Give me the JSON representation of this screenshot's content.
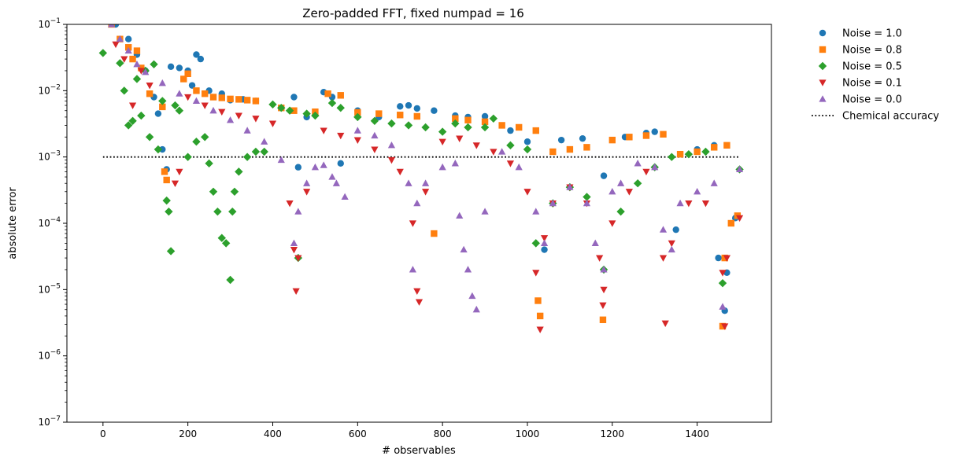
{
  "chart_data": {
    "type": "scatter",
    "title": "Zero-padded FFT, fixed numpad = 16",
    "xlabel": "# observables",
    "ylabel": "absolute error",
    "xlim": [
      -85,
      1575
    ],
    "ylim": [
      1e-07,
      0.1
    ],
    "yscale": "log",
    "xticks": [
      0,
      200,
      400,
      600,
      800,
      1000,
      1200,
      1400
    ],
    "yticks": [
      {
        "value": 1e-07,
        "base": "10",
        "exp": "−7"
      },
      {
        "value": 1e-06,
        "base": "10",
        "exp": "−6"
      },
      {
        "value": 1e-05,
        "base": "10",
        "exp": "−5"
      },
      {
        "value": 0.0001,
        "base": "10",
        "exp": "−4"
      },
      {
        "value": 0.001,
        "base": "10",
        "exp": "−3"
      },
      {
        "value": 0.01,
        "base": "10",
        "exp": "−2"
      },
      {
        "value": 0.1,
        "base": "10",
        "exp": "−1"
      }
    ],
    "grid": false,
    "legend_position": "outside-right",
    "reference_line": {
      "name": "Chemical accuracy",
      "y": 0.001,
      "x": [
        0,
        1500
      ],
      "style": "dotted",
      "color": "#000000"
    },
    "series": [
      {
        "name": "Noise = 1.0",
        "marker": "circle",
        "color": "#1f77b4",
        "x": [
          30,
          60,
          80,
          100,
          120,
          130,
          140,
          150,
          160,
          180,
          200,
          210,
          220,
          230,
          250,
          280,
          300,
          330,
          360,
          420,
          450,
          460,
          480,
          520,
          540,
          560,
          600,
          650,
          700,
          720,
          740,
          780,
          830,
          860,
          900,
          960,
          1000,
          1040,
          1080,
          1130,
          1180,
          1230,
          1280,
          1300,
          1350,
          1400,
          1440,
          1450,
          1465,
          1470,
          1490
        ],
        "y": [
          0.1,
          0.06,
          0.035,
          0.02,
          0.008,
          0.0045,
          0.0013,
          0.00065,
          0.023,
          0.022,
          0.02,
          0.012,
          0.035,
          0.03,
          0.01,
          0.009,
          0.0072,
          0.0074,
          0.007,
          0.0055,
          0.008,
          0.0007,
          0.004,
          0.0095,
          0.008,
          0.0008,
          0.005,
          0.004,
          0.0058,
          0.006,
          0.0054,
          0.005,
          0.0042,
          0.004,
          0.0041,
          0.0025,
          0.0017,
          4e-05,
          0.0018,
          0.0019,
          0.00052,
          0.002,
          0.0023,
          0.0024,
          8e-05,
          0.0013,
          0.0015,
          3e-05,
          4.8e-06,
          1.8e-05,
          0.00012
        ]
      },
      {
        "name": "Noise = 0.8",
        "marker": "square",
        "color": "#ff7f0e",
        "x": [
          20,
          40,
          60,
          70,
          80,
          90,
          110,
          140,
          145,
          150,
          190,
          200,
          220,
          240,
          260,
          280,
          300,
          320,
          340,
          360,
          420,
          450,
          500,
          530,
          560,
          600,
          650,
          700,
          740,
          780,
          830,
          860,
          900,
          940,
          980,
          1020,
          1025,
          1030,
          1060,
          1100,
          1140,
          1178,
          1200,
          1240,
          1280,
          1320,
          1360,
          1400,
          1440,
          1460,
          1465,
          1470,
          1480,
          1495
        ],
        "y": [
          0.1,
          0.06,
          0.045,
          0.03,
          0.04,
          0.022,
          0.009,
          0.0057,
          0.0006,
          0.00045,
          0.015,
          0.018,
          0.01,
          0.009,
          0.008,
          0.0078,
          0.0075,
          0.0074,
          0.0072,
          0.007,
          0.0055,
          0.005,
          0.0048,
          0.009,
          0.0085,
          0.0047,
          0.0045,
          0.0043,
          0.0041,
          7e-05,
          0.0038,
          0.0036,
          0.0034,
          0.003,
          0.0028,
          0.0025,
          6.8e-06,
          4e-06,
          0.0012,
          0.0013,
          0.0014,
          3.5e-06,
          0.0018,
          0.002,
          0.0021,
          0.0022,
          0.0011,
          0.0012,
          0.0014,
          2.8e-06,
          3e-05,
          0.0015,
          0.0001,
          0.00013
        ]
      },
      {
        "name": "Noise = 0.5",
        "marker": "diamond",
        "color": "#2ca02c",
        "x": [
          0,
          40,
          50,
          60,
          70,
          80,
          90,
          100,
          110,
          120,
          130,
          140,
          150,
          155,
          160,
          170,
          180,
          200,
          220,
          240,
          250,
          260,
          270,
          280,
          290,
          300,
          305,
          310,
          320,
          340,
          360,
          380,
          400,
          420,
          440,
          460,
          480,
          500,
          540,
          560,
          600,
          640,
          680,
          720,
          760,
          800,
          830,
          860,
          900,
          920,
          960,
          1000,
          1020,
          1060,
          1100,
          1140,
          1180,
          1220,
          1260,
          1300,
          1340,
          1380,
          1420,
          1460,
          1500
        ],
        "y": [
          0.037,
          0.026,
          0.01,
          0.003,
          0.0035,
          0.015,
          0.0042,
          0.02,
          0.002,
          0.025,
          0.0013,
          0.007,
          0.00022,
          0.00015,
          3.8e-05,
          0.006,
          0.005,
          0.001,
          0.0017,
          0.002,
          0.0008,
          0.0003,
          0.00015,
          6e-05,
          5e-05,
          1.4e-05,
          0.00015,
          0.0003,
          0.0006,
          0.001,
          0.0012,
          0.0012,
          0.0062,
          0.0055,
          0.005,
          3e-05,
          0.0045,
          0.0042,
          0.0065,
          0.0055,
          0.004,
          0.0035,
          0.0032,
          0.003,
          0.0028,
          0.0024,
          0.0032,
          0.0028,
          0.0028,
          0.0038,
          0.0015,
          0.0013,
          5e-05,
          0.0002,
          0.00035,
          0.00025,
          2e-05,
          0.00015,
          0.0004,
          0.0007,
          0.001,
          0.0011,
          0.0012,
          1.25e-05,
          0.00065
        ]
      },
      {
        "name": "Noise = 0.1",
        "marker": "triangle-down",
        "color": "#d62728",
        "x": [
          30,
          50,
          70,
          90,
          110,
          170,
          180,
          200,
          240,
          280,
          320,
          360,
          400,
          440,
          450,
          455,
          460,
          480,
          520,
          560,
          600,
          640,
          680,
          700,
          730,
          740,
          745,
          760,
          800,
          840,
          880,
          920,
          960,
          1000,
          1020,
          1030,
          1040,
          1060,
          1100,
          1140,
          1170,
          1178,
          1180,
          1200,
          1240,
          1280,
          1320,
          1325,
          1340,
          1380,
          1420,
          1460,
          1465,
          1470,
          1500
        ],
        "y": [
          0.05,
          0.03,
          0.006,
          0.02,
          0.012,
          0.0004,
          0.0006,
          0.008,
          0.006,
          0.0048,
          0.0042,
          0.0038,
          0.0032,
          0.0002,
          4e-05,
          9.5e-06,
          3e-05,
          0.0003,
          0.0025,
          0.0021,
          0.0018,
          0.0013,
          0.0009,
          0.0006,
          0.0001,
          9.5e-06,
          6.5e-06,
          0.0003,
          0.0017,
          0.0019,
          0.0015,
          0.0012,
          0.0008,
          0.0003,
          1.8e-05,
          2.5e-06,
          6e-05,
          0.0002,
          0.00035,
          0.0002,
          3e-05,
          5.8e-06,
          1e-05,
          0.0001,
          0.0003,
          0.0006,
          3e-05,
          3.1e-06,
          5e-05,
          0.0002,
          0.0002,
          1.8e-05,
          2.8e-06,
          3e-05,
          0.00012
        ]
      },
      {
        "name": "Noise = 0.0",
        "marker": "triangle-up",
        "color": "#9467bd",
        "x": [
          20,
          40,
          60,
          80,
          100,
          140,
          180,
          220,
          260,
          300,
          340,
          380,
          420,
          450,
          460,
          480,
          500,
          520,
          540,
          550,
          570,
          600,
          640,
          680,
          720,
          730,
          740,
          760,
          800,
          830,
          840,
          850,
          860,
          870,
          880,
          900,
          940,
          980,
          1020,
          1040,
          1060,
          1100,
          1140,
          1160,
          1180,
          1200,
          1220,
          1260,
          1300,
          1320,
          1340,
          1360,
          1400,
          1440,
          1460,
          1500
        ],
        "y": [
          0.1,
          0.06,
          0.04,
          0.025,
          0.019,
          0.013,
          0.009,
          0.007,
          0.005,
          0.0036,
          0.0025,
          0.0017,
          0.0009,
          5e-05,
          0.00015,
          0.0004,
          0.0007,
          0.00075,
          0.0005,
          0.0004,
          0.00025,
          0.0025,
          0.0021,
          0.0015,
          0.0004,
          2e-05,
          0.0002,
          0.0004,
          0.0007,
          0.0008,
          0.00013,
          4e-05,
          2e-05,
          8e-06,
          5e-06,
          0.00015,
          0.0012,
          0.0007,
          0.00015,
          5e-05,
          0.0002,
          0.00035,
          0.0002,
          5e-05,
          2e-05,
          0.0003,
          0.0004,
          0.0008,
          0.0007,
          8e-05,
          4e-05,
          0.0002,
          0.0003,
          0.0004,
          5.5e-06,
          0.00065
        ]
      }
    ]
  }
}
